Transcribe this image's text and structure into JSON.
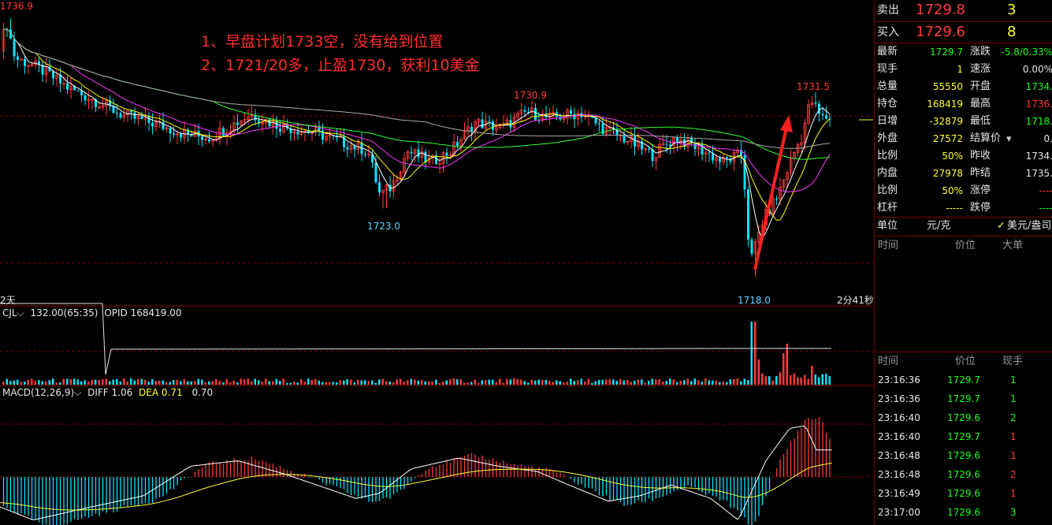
{
  "annotations": {
    "line1": "1、早盘计划1733空，没有给到位置",
    "line2": "2、1721/20多，止盈1730，获利10美金"
  },
  "price_labels": {
    "high_left": "1736.9",
    "mid_high": "1730.9",
    "low_mid": "1723.0",
    "low_right": "1718.0",
    "high_right": "1731.5"
  },
  "axis": {
    "left_period": "2天",
    "countdown": "2分41秒"
  },
  "volume_panel": {
    "name": "CJL",
    "value": "132.00(65:35)",
    "opid_label": "OPID",
    "opid_value": "168419.00"
  },
  "macd_panel": {
    "name": "MACD(12,26,9)",
    "diff_label": "DIFF",
    "diff_value": "1.06",
    "dea_label": "DEA",
    "dea_value": "0.71",
    "macd_value": "0.70"
  },
  "quote": {
    "sell_label": "卖出",
    "sell_price": "1729.8",
    "sell_qty": "3",
    "buy_label": "买入",
    "buy_price": "1729.6",
    "buy_qty": "8",
    "rows": [
      {
        "l1": "最新",
        "v1": "1729.7",
        "c1": "green",
        "l2": "涨跌",
        "v2": "-5.8/0.33%",
        "c2": "green"
      },
      {
        "l1": "现手",
        "v1": "1",
        "c1": "yellow",
        "l2": "速涨",
        "v2": "0.00%",
        "c2": "white"
      },
      {
        "l1": "总量",
        "v1": "55550",
        "c1": "yellow",
        "l2": "开盘",
        "v2": "1734.",
        "c2": "green"
      },
      {
        "l1": "持仓",
        "v1": "168419",
        "c1": "yellow",
        "l2": "最高",
        "v2": "1736.",
        "c2": "red"
      },
      {
        "l1": "日增",
        "v1": "-32879",
        "c1": "yellow",
        "l2": "最低",
        "v2": "1718.",
        "c2": "green"
      },
      {
        "l1": "外盘",
        "v1": "27572",
        "c1": "yellow",
        "l2": "结算价",
        "v2": "0.",
        "c2": "white"
      },
      {
        "l1": "比例",
        "v1": "50%",
        "c1": "yellow",
        "l2": "昨收",
        "v2": "1734.",
        "c2": "white"
      },
      {
        "l1": "内盘",
        "v1": "27978",
        "c1": "yellow",
        "l2": "昨结",
        "v2": "1735.",
        "c2": "white"
      },
      {
        "l1": "比例",
        "v1": "50%",
        "c1": "yellow",
        "l2": "涨停",
        "v2": "----",
        "c2": "red"
      },
      {
        "l1": "杠杆",
        "v1": "-----",
        "c1": "yellow",
        "l2": "跌停",
        "v2": "----",
        "c2": "green"
      }
    ],
    "unit_label": "单位",
    "unit_value": "元/克",
    "unit_alt": "美元/盎司"
  },
  "big_orders": {
    "col_time": "时间",
    "col_price": "价位",
    "col_big": "大单"
  },
  "ticks": {
    "col_time": "时间",
    "col_price": "价位",
    "col_qty": "现手",
    "rows": [
      {
        "time": "23:16:36",
        "price": "1729.7",
        "qty": "1",
        "qc": "green"
      },
      {
        "time": "23:16:36",
        "price": "1729.7",
        "qty": "1",
        "qc": "green"
      },
      {
        "time": "23:16:40",
        "price": "1729.6",
        "qty": "2",
        "qc": "green"
      },
      {
        "time": "23:16:40",
        "price": "1729.7",
        "qty": "1",
        "qc": "red"
      },
      {
        "time": "23:16:48",
        "price": "1729.6",
        "qty": "1",
        "qc": "red"
      },
      {
        "time": "23:16:48",
        "price": "1729.6",
        "qty": "2",
        "qc": "red"
      },
      {
        "time": "23:16:49",
        "price": "1729.6",
        "qty": "1",
        "qc": "red"
      },
      {
        "time": "23:17:00",
        "price": "1729.6",
        "qty": "3",
        "qc": "green"
      }
    ]
  },
  "colors": {
    "up": "#ff3a3a",
    "down": "#00e5ff",
    "ma5": "#ffffff",
    "ma10": "#ffff00",
    "ma20": "#ff33ff",
    "ma60": "#33ff33",
    "ma120": "#aaaaaa",
    "arrow": "#ff2020"
  },
  "chart_data": {
    "type": "candlestick",
    "anchors": [
      [
        0,
        1734.5
      ],
      [
        12,
        1736.5
      ],
      [
        22,
        1734.0
      ],
      [
        40,
        1733.6
      ],
      [
        60,
        1733.0
      ],
      [
        90,
        1731.8
      ],
      [
        120,
        1731.0
      ],
      [
        160,
        1729.8
      ],
      [
        200,
        1729.2
      ],
      [
        240,
        1728.4
      ],
      [
        270,
        1728.2
      ],
      [
        300,
        1729.2
      ],
      [
        320,
        1729.9
      ],
      [
        360,
        1729.0
      ],
      [
        400,
        1728.6
      ],
      [
        440,
        1727.8
      ],
      [
        470,
        1727.2
      ],
      [
        485,
        1724.0
      ],
      [
        500,
        1724.6
      ],
      [
        520,
        1727.2
      ],
      [
        550,
        1726.4
      ],
      [
        575,
        1727.2
      ],
      [
        605,
        1729.3
      ],
      [
        640,
        1728.9
      ],
      [
        672,
        1730.1
      ],
      [
        700,
        1729.6
      ],
      [
        740,
        1730.0
      ],
      [
        770,
        1728.8
      ],
      [
        800,
        1728.0
      ],
      [
        830,
        1726.9
      ],
      [
        860,
        1728.2
      ],
      [
        890,
        1727.4
      ],
      [
        920,
        1726.4
      ],
      [
        945,
        1727.0
      ],
      [
        955,
        1719.0
      ],
      [
        970,
        1722.0
      ],
      [
        990,
        1724.0
      ],
      [
        1010,
        1727.0
      ],
      [
        1020,
        1728.2
      ],
      [
        1032,
        1731.0
      ],
      [
        1045,
        1729.6
      ],
      [
        1054,
        1729.7
      ]
    ],
    "y_range": [
      1716.8,
      1737.8
    ],
    "volume_spikes": [
      [
        955,
        40
      ],
      [
        960,
        16
      ],
      [
        993,
        20
      ],
      [
        999,
        26
      ],
      [
        1028,
        12
      ]
    ],
    "opid_drop": [
      [
        0,
        85
      ],
      [
        130,
        85
      ],
      [
        134,
        175
      ],
      [
        141,
        143
      ],
      [
        1055,
        142
      ]
    ],
    "macd_anchors": [
      [
        0,
        -0.9
      ],
      [
        60,
        -1.6
      ],
      [
        120,
        -1.2
      ],
      [
        200,
        -0.7
      ],
      [
        260,
        0.4
      ],
      [
        320,
        0.6
      ],
      [
        380,
        0.1
      ],
      [
        430,
        -0.4
      ],
      [
        470,
        -0.8
      ],
      [
        500,
        -0.6
      ],
      [
        540,
        0.3
      ],
      [
        600,
        0.7
      ],
      [
        650,
        0.4
      ],
      [
        700,
        0.2
      ],
      [
        740,
        -0.3
      ],
      [
        790,
        -0.9
      ],
      [
        830,
        -0.7
      ],
      [
        870,
        -0.3
      ],
      [
        920,
        -0.8
      ],
      [
        955,
        -1.6
      ],
      [
        990,
        0.6
      ],
      [
        1020,
        1.8
      ],
      [
        1040,
        1.9
      ],
      [
        1054,
        1.0
      ]
    ]
  }
}
